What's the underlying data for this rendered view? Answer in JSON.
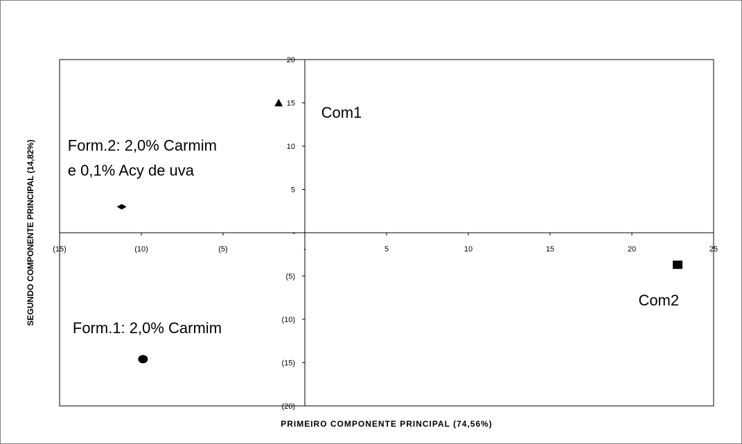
{
  "chart_data": {
    "type": "scatter",
    "xlabel": "PRIMEIRO COMPONENTE PRINCIPAL (74,56%)",
    "ylabel": "SEGUNDO COMPONENTE PRINCIPAL (14,82%)",
    "xlim": [
      -15,
      25
    ],
    "ylim": [
      -20,
      20
    ],
    "x_ticks": [
      -15,
      -10,
      -5,
      0,
      5,
      10,
      15,
      20,
      25
    ],
    "y_ticks": [
      -20,
      -15,
      -10,
      -5,
      0,
      5,
      10,
      15,
      20
    ],
    "x_tick_labels": [
      "(15)",
      "(10)",
      "(5)",
      "-",
      "5",
      "10",
      "15",
      "20",
      "25"
    ],
    "y_tick_labels": [
      "(20)",
      "(15)",
      "(10)",
      "(5)",
      "-",
      "5",
      "10",
      "15",
      "20"
    ],
    "grid": false,
    "points": [
      {
        "x": -1.6,
        "y": 15.0,
        "marker": "triangle"
      },
      {
        "x": 22.8,
        "y": -3.7,
        "marker": "square"
      },
      {
        "x": -11.2,
        "y": 3.0,
        "marker": "diamond"
      },
      {
        "x": -9.9,
        "y": -14.6,
        "marker": "circle"
      }
    ],
    "annotations": [
      {
        "text": "Com1",
        "x": 1.0,
        "y": 13.3
      },
      {
        "text": "Com2",
        "x": 20.4,
        "y": -8.4
      },
      {
        "text": "Form.2: 2,0% Carmim",
        "x": -14.5,
        "y": 9.5
      },
      {
        "text": "e 0,1% Acy de uva",
        "x": -14.5,
        "y": 6.6
      },
      {
        "text": "Form.1: 2,0% Carmim",
        "x": -14.2,
        "y": -11.6
      }
    ],
    "colors": {
      "marker": "#000000",
      "axis": "#000000",
      "frame": "#808080",
      "background": "#ffffff"
    }
  }
}
